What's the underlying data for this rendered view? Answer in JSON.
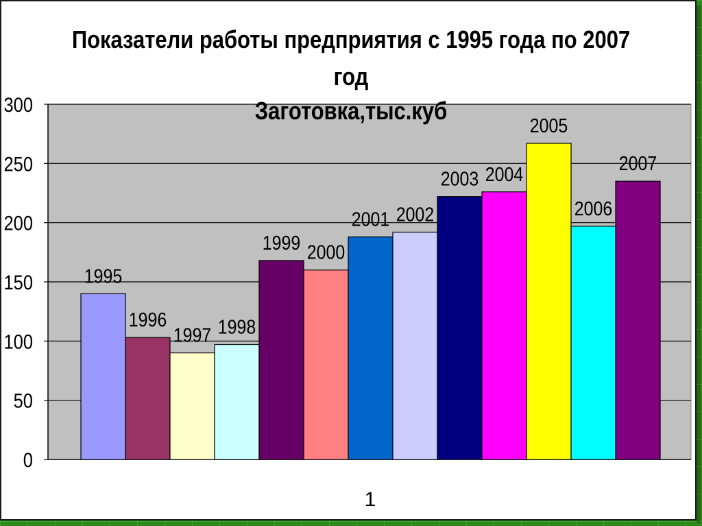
{
  "chart_data": {
    "type": "bar",
    "title_lines": [
      "Показатели работы предприятия с 1995 года по 2007",
      "год",
      "Заготовка,тыс.куб"
    ],
    "categories": [
      "1"
    ],
    "series": [
      {
        "name": "1995",
        "value": 140,
        "color": "#9999ff"
      },
      {
        "name": "1996",
        "value": 103,
        "color": "#993366"
      },
      {
        "name": "1997",
        "value": 90,
        "color": "#ffffcc"
      },
      {
        "name": "1998",
        "value": 97,
        "color": "#ccffff"
      },
      {
        "name": "1999",
        "value": 168,
        "color": "#660066"
      },
      {
        "name": "2000",
        "value": 160,
        "color": "#ff8080"
      },
      {
        "name": "2001",
        "value": 188,
        "color": "#0066cc"
      },
      {
        "name": "2002",
        "value": 192,
        "color": "#ccccff"
      },
      {
        "name": "2003",
        "value": 222,
        "color": "#000080"
      },
      {
        "name": "2004",
        "value": 226,
        "color": "#ff00ff"
      },
      {
        "name": "2005",
        "value": 267,
        "color": "#ffff00"
      },
      {
        "name": "2006",
        "value": 197,
        "color": "#00ffff"
      },
      {
        "name": "2007",
        "value": 235,
        "color": "#800080"
      }
    ],
    "y_ticks": [
      "0",
      "50",
      "100",
      "150",
      "200",
      "250",
      "300"
    ],
    "ylim": [
      0,
      300
    ],
    "grid": true,
    "plot_background": "#c0c0c0"
  }
}
